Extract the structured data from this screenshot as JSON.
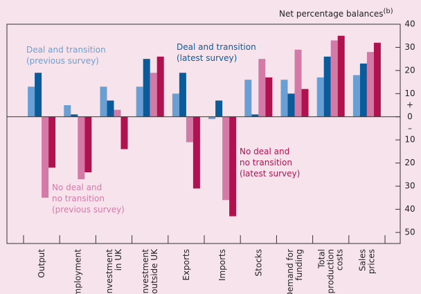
{
  "chart_data": {
    "type": "bar",
    "y_label": "Net percentage balances",
    "y_label_note": "(b)",
    "categories": [
      "Output",
      "Employment",
      "Investment\nin UK",
      "Investment\noutside UK",
      "Exports",
      "Imports",
      "Stocks",
      "Demand for\nfunding",
      "Total\nproduction\ncosts",
      "Sales\nprices"
    ],
    "series": [
      {
        "name": [
          "Deal and transition",
          "(previous survey)"
        ],
        "color": "#6a9fd4",
        "values": [
          13,
          5,
          13,
          13,
          10,
          -1,
          16,
          16,
          17,
          18
        ]
      },
      {
        "name": [
          "Deal and transition",
          "(latest survey)"
        ],
        "color": "#0b5a9a",
        "values": [
          19,
          1,
          7,
          25,
          19,
          7,
          1,
          10,
          26,
          23
        ]
      },
      {
        "name": [
          "No deal and",
          "no transition",
          "(previous survey)"
        ],
        "color": "#d47aa8",
        "values": [
          -35,
          -27,
          3,
          19,
          -11,
          -36,
          25,
          29,
          33,
          28
        ]
      },
      {
        "name": [
          "No deal and",
          "no transition",
          "(latest survey)"
        ],
        "color": "#b0124f",
        "values": [
          -22,
          -24,
          -14,
          26,
          -31,
          -43,
          17,
          12,
          35,
          32
        ]
      }
    ],
    "ylim": [
      -50,
      40
    ],
    "yticks": [
      40,
      30,
      20,
      10,
      0,
      {
        "value": -10,
        "label": "10"
      },
      {
        "value": -20,
        "label": "20"
      },
      {
        "value": -30,
        "label": "30"
      },
      {
        "value": -40,
        "label": "40"
      },
      {
        "value": -50,
        "label": "50"
      }
    ],
    "axis_signs": [
      "+",
      "–"
    ]
  }
}
